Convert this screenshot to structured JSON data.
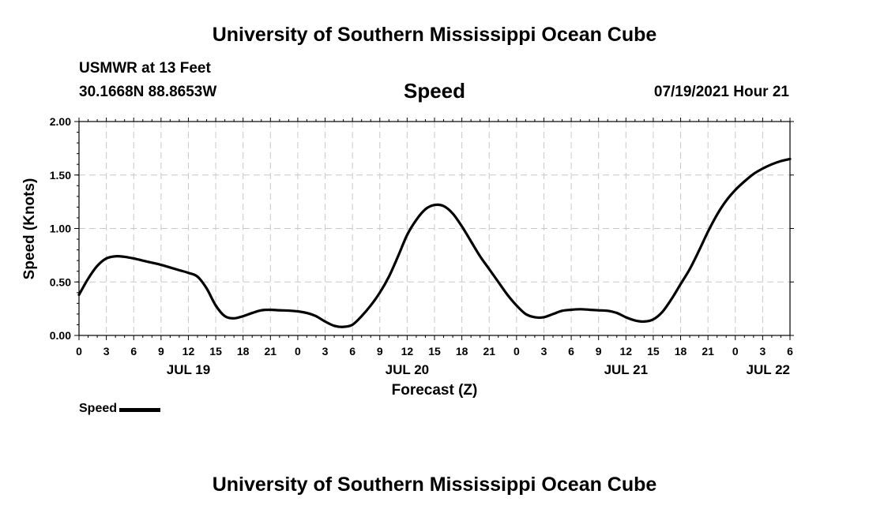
{
  "header": {
    "title": "University of Southern Mississippi Ocean Cube",
    "station": "USMWR at 13 Feet",
    "coordinates": "30.1668N  88.8653W",
    "variable": "Speed",
    "datetime": "07/19/2021 Hour 21"
  },
  "footer": {
    "title": "University of Southern Mississippi Ocean Cube"
  },
  "legend": {
    "label": "Speed"
  },
  "chart_data": {
    "type": "line",
    "title": "Speed",
    "xlabel": "Forecast (Z)",
    "ylabel": "Speed (Knots)",
    "ylim": [
      0,
      2.0
    ],
    "yticks": [
      "0.00",
      "0.50",
      "1.00",
      "1.50",
      "2.00"
    ],
    "xlim_hours": [
      0,
      78
    ],
    "xtick_labels": [
      "0",
      "3",
      "6",
      "9",
      "12",
      "15",
      "18",
      "21",
      "0",
      "3",
      "6",
      "9",
      "12",
      "15",
      "18",
      "21",
      "0",
      "3",
      "6",
      "9",
      "12",
      "15",
      "18",
      "21",
      "0",
      "3",
      "6"
    ],
    "date_labels": [
      {
        "label": "JUL 19",
        "hour": 12
      },
      {
        "label": "JUL 20",
        "hour": 36
      },
      {
        "label": "JUL 21",
        "hour": 60
      },
      {
        "label": "JUL 22",
        "hour": 78
      }
    ],
    "grid": true,
    "series": [
      {
        "name": "Speed",
        "color": "#000000",
        "x_hours": [
          0,
          1,
          2,
          3,
          4,
          5,
          6,
          7,
          8,
          9,
          10,
          11,
          12,
          13,
          14,
          15,
          16,
          17,
          18,
          19,
          20,
          21,
          22,
          23,
          24,
          25,
          26,
          27,
          28,
          29,
          30,
          31,
          32,
          33,
          34,
          35,
          36,
          37,
          38,
          39,
          40,
          41,
          42,
          43,
          44,
          45,
          46,
          47,
          48,
          49,
          50,
          51,
          52,
          53,
          54,
          55,
          56,
          57,
          58,
          59,
          60,
          61,
          62,
          63,
          64,
          65,
          66,
          67,
          68,
          69,
          70,
          71,
          72,
          73,
          74,
          75,
          76,
          77,
          78
        ],
        "values": [
          0.38,
          0.53,
          0.65,
          0.72,
          0.74,
          0.735,
          0.72,
          0.7,
          0.68,
          0.66,
          0.635,
          0.61,
          0.585,
          0.55,
          0.44,
          0.28,
          0.18,
          0.16,
          0.18,
          0.21,
          0.235,
          0.24,
          0.235,
          0.232,
          0.225,
          0.21,
          0.18,
          0.13,
          0.09,
          0.08,
          0.1,
          0.18,
          0.28,
          0.4,
          0.55,
          0.74,
          0.94,
          1.08,
          1.18,
          1.22,
          1.21,
          1.14,
          1.02,
          0.88,
          0.74,
          0.62,
          0.5,
          0.38,
          0.28,
          0.2,
          0.17,
          0.17,
          0.2,
          0.23,
          0.24,
          0.245,
          0.24,
          0.235,
          0.23,
          0.21,
          0.17,
          0.14,
          0.13,
          0.15,
          0.22,
          0.34,
          0.48,
          0.62,
          0.79,
          0.97,
          1.13,
          1.26,
          1.36,
          1.44,
          1.51,
          1.56,
          1.6,
          1.63,
          1.65
        ]
      }
    ]
  }
}
